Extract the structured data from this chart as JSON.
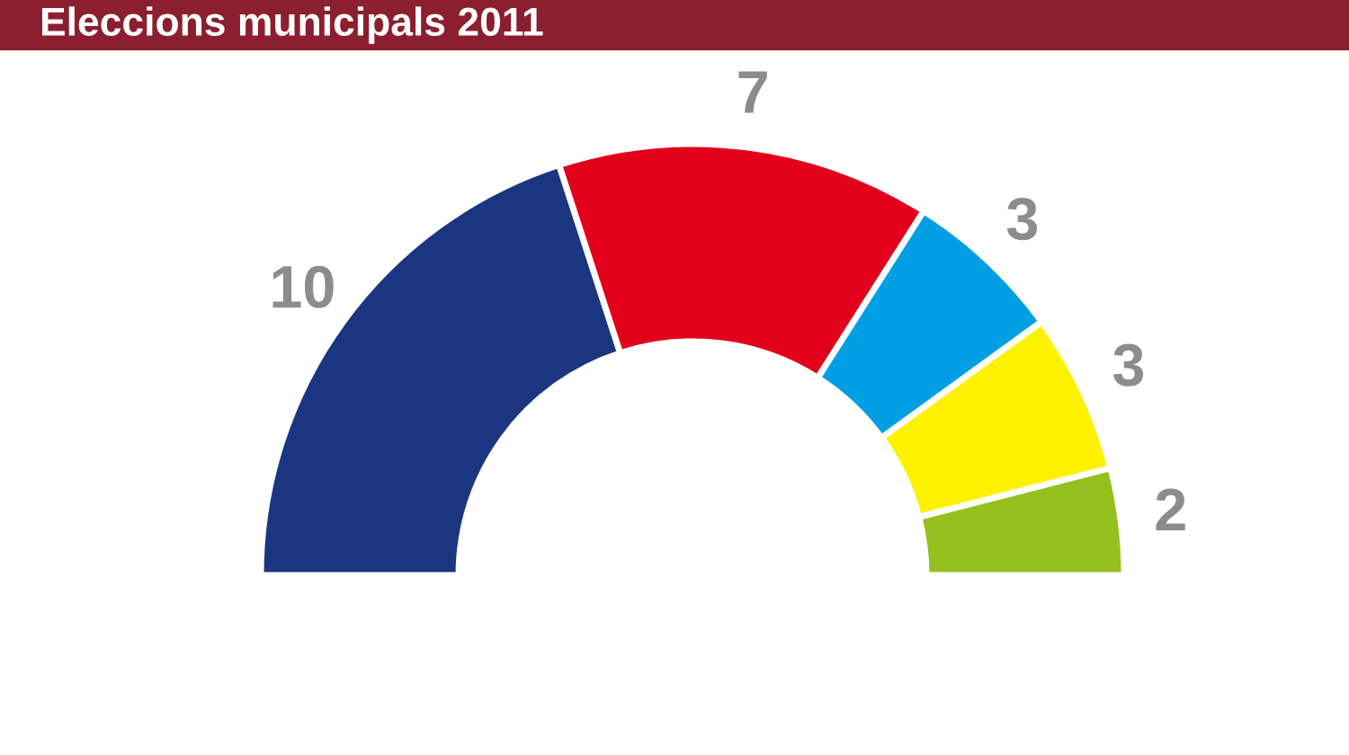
{
  "chart_data": {
    "type": "donut",
    "title": "Eleccions municipals 2011",
    "categories": [
      null,
      null,
      null,
      null,
      null
    ],
    "values": [
      10,
      7,
      3,
      3,
      2
    ],
    "colors": [
      "#1b3580",
      "#e2001a",
      "#009fe3",
      "#fff200",
      "#95c11f"
    ],
    "data_labels": true
  }
}
